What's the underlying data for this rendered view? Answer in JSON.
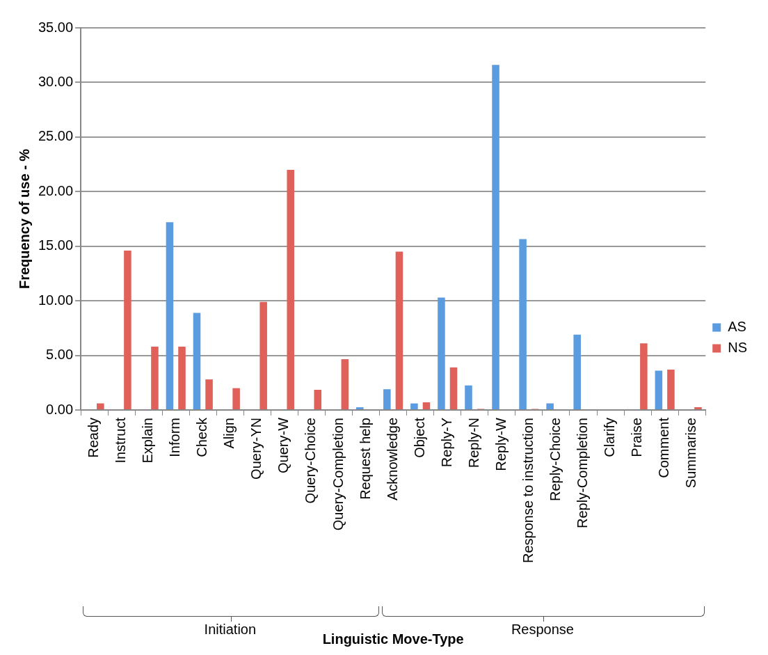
{
  "chart_data": {
    "type": "bar",
    "xlabel": "Linguistic Move-Type",
    "ylabel": "Frequency of use - %",
    "categories": [
      "Ready",
      "Instruct",
      "Explain",
      "Inform",
      "Check",
      "Align",
      "Query-YN",
      "Query-W",
      "Query-Choice",
      "Query-Completion",
      "Request help",
      "Acknowledge",
      "Object",
      "Reply-Y",
      "Reply-N",
      "Reply-W",
      "Response to instruction",
      "Reply-Choice",
      "Reply-Completion",
      "Clarify",
      "Praise",
      "Comment",
      "Summarise"
    ],
    "series": [
      {
        "name": "AS",
        "color": "#5b9be0",
        "values": [
          0,
          0,
          0,
          17.2,
          8.9,
          0,
          0,
          0,
          0,
          0,
          0.25,
          1.9,
          0.6,
          10.3,
          2.25,
          31.6,
          15.65,
          0.6,
          6.9,
          0,
          0,
          3.6,
          0
        ]
      },
      {
        "name": "NS",
        "color": "#e0605a",
        "values": [
          0.6,
          14.6,
          5.8,
          5.8,
          2.8,
          2.0,
          9.9,
          22.0,
          1.85,
          4.65,
          0,
          14.5,
          0.7,
          3.9,
          0.1,
          0,
          0.1,
          0,
          0,
          0,
          6.1,
          3.7,
          0.25
        ]
      }
    ],
    "ylim": [
      0,
      35
    ],
    "yticks": [
      {
        "value": 0,
        "label": "0.00"
      },
      {
        "value": 5,
        "label": "5.00"
      },
      {
        "value": 10,
        "label": "10.00"
      },
      {
        "value": 15,
        "label": "15.00"
      },
      {
        "value": 20,
        "label": "20.00"
      },
      {
        "value": 25,
        "label": "25.00"
      },
      {
        "value": 30,
        "label": "30.00"
      },
      {
        "value": 35,
        "label": "35.00"
      }
    ],
    "grid": "y",
    "legend": "right",
    "annotations": [
      "Initiation",
      "Response"
    ]
  }
}
